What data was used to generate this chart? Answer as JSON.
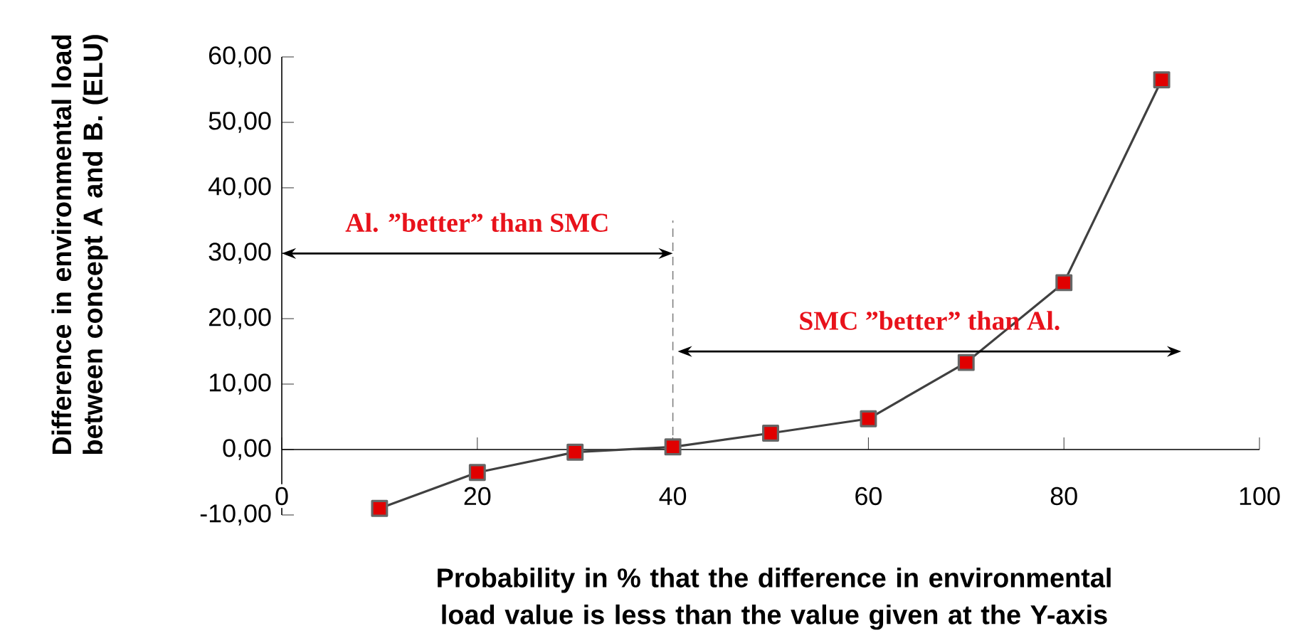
{
  "chart_data": {
    "type": "line",
    "xlabel": "Probability in %  that the difference in environmental load value is less than the value given at the Y-axis",
    "ylabel": "Difference in environmental load between concept A and B. (ELU)",
    "x": [
      10,
      20,
      30,
      40,
      50,
      60,
      70,
      80,
      90
    ],
    "series": [
      {
        "color": "#e00000",
        "values": [
          -9.0,
          -3.5,
          -0.4,
          0.4,
          2.5,
          4.7,
          13.3,
          25.5,
          56.5
        ]
      }
    ],
    "xlim": [
      0,
      100
    ],
    "xticks": [
      0,
      20,
      40,
      60,
      80,
      100
    ],
    "ylim": [
      -10,
      60
    ],
    "yticks": [
      {
        "value": -10,
        "label": "-10,00"
      },
      {
        "value": 0,
        "label": "0,00"
      },
      {
        "value": 10,
        "label": "10,00"
      },
      {
        "value": 20,
        "label": "20,00"
      },
      {
        "value": 30,
        "label": "30,00"
      },
      {
        "value": 40,
        "label": "40,00"
      },
      {
        "value": 50,
        "label": "50,00"
      },
      {
        "value": 60,
        "label": "60,00"
      }
    ],
    "ref_lines": [
      {
        "axis": "x",
        "value": 40,
        "color": "#808080",
        "line_style": "dashed"
      }
    ],
    "annotations": [
      "Al. ”better” than SMC",
      "SMC ”better” than Al."
    ],
    "marker": "square",
    "line_style": "solid",
    "grid": false
  }
}
